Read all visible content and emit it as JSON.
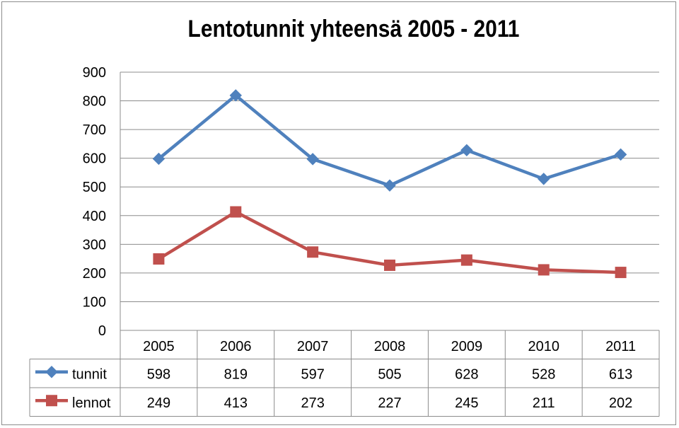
{
  "chart_data": {
    "type": "line",
    "title": "Lentotunnit yhteensä 2005 - 2011",
    "categories": [
      "2005",
      "2006",
      "2007",
      "2008",
      "2009",
      "2010",
      "2011"
    ],
    "ylim": [
      0,
      900
    ],
    "yticks": [
      0,
      100,
      200,
      300,
      400,
      500,
      600,
      700,
      800,
      900
    ],
    "grid": true,
    "legend": "data-table-left",
    "series": [
      {
        "name": "tunnit",
        "values": [
          598,
          819,
          597,
          505,
          628,
          528,
          613
        ],
        "color": "#4f81bd",
        "marker": "diamond"
      },
      {
        "name": "lennot",
        "values": [
          249,
          413,
          273,
          227,
          245,
          211,
          202
        ],
        "color": "#c0504d",
        "marker": "square"
      }
    ]
  }
}
